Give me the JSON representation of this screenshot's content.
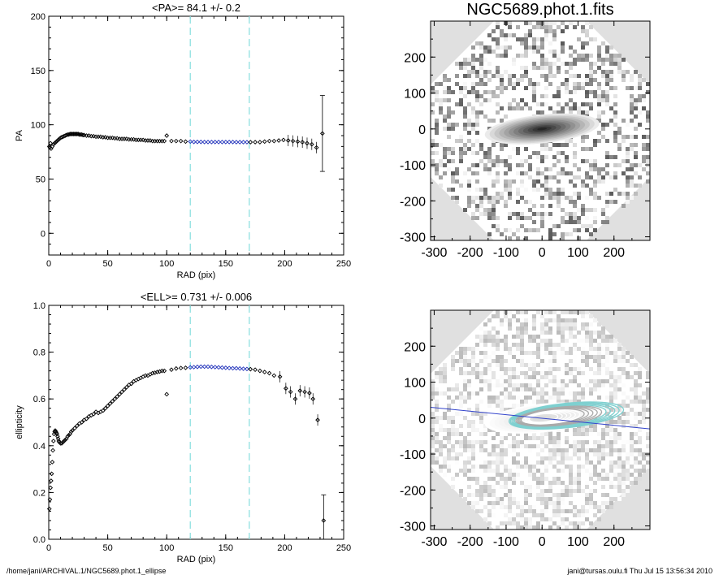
{
  "chart_data": [
    {
      "type": "scatter",
      "title": "<PA>=  84.1 +/-   0.2",
      "xlabel": "RAD (pix)",
      "ylabel": "PA",
      "xlim": [
        0,
        250
      ],
      "ylim": [
        -20,
        200
      ],
      "xticks": [
        "0",
        "50",
        "100",
        "150",
        "200",
        "250"
      ],
      "yticks": [
        "0",
        "50",
        "100",
        "150",
        "200"
      ],
      "xtick_values": [
        0,
        50,
        100,
        150,
        200,
        250
      ],
      "ytick_values": [
        0,
        50,
        100,
        150,
        200
      ],
      "vlines": [
        120,
        170
      ],
      "vline_color": "#8fe0e0",
      "highlight_color": "#2233bb",
      "highlight_range": [
        120,
        170
      ],
      "x": [
        0.5,
        1,
        1.5,
        2,
        3,
        4,
        5,
        6,
        7,
        8,
        9,
        10,
        11,
        12,
        13,
        14,
        15,
        16,
        17,
        18,
        19,
        20,
        21,
        22,
        23,
        24,
        25,
        26,
        27,
        28,
        29,
        30,
        32,
        34,
        36,
        38,
        40,
        42,
        44,
        46,
        48,
        50,
        52,
        54,
        56,
        58,
        60,
        62,
        64,
        66,
        68,
        70,
        72,
        74,
        76,
        78,
        80,
        82,
        84,
        86,
        88,
        90,
        92,
        94,
        96,
        98,
        100,
        104,
        108,
        112,
        116,
        120,
        123,
        126,
        129,
        132,
        135,
        138,
        141,
        144,
        147,
        150,
        153,
        156,
        159,
        162,
        165,
        168,
        171,
        175,
        179,
        183,
        187,
        191,
        195,
        199,
        203,
        207,
        211,
        215,
        219,
        223,
        227,
        232
      ],
      "y": [
        80,
        79,
        83,
        78,
        80,
        82,
        83,
        84,
        85,
        86,
        87,
        88,
        88.5,
        89,
        89.5,
        90,
        90.5,
        91,
        91,
        91.5,
        91.5,
        91.5,
        91.5,
        91.5,
        91.5,
        91.5,
        91.5,
        91,
        91,
        91,
        90.5,
        90.5,
        90,
        90,
        89.5,
        89.5,
        89,
        89,
        89,
        88.5,
        88.5,
        88,
        88,
        88,
        87.5,
        87.5,
        87,
        87,
        87,
        87,
        86.5,
        86.5,
        86.5,
        86,
        86,
        86,
        86,
        85.5,
        85.5,
        85.5,
        85,
        85,
        85,
        85,
        85,
        85,
        90,
        85,
        85,
        85,
        84.5,
        84.5,
        84.2,
        84.2,
        84.2,
        84.1,
        84.1,
        84.1,
        84.1,
        84.1,
        84.1,
        84.1,
        84.1,
        84.1,
        84,
        84,
        84,
        84,
        84,
        84,
        84,
        84.5,
        85,
        85,
        85.5,
        86,
        85.5,
        85,
        84.5,
        84,
        83,
        82,
        79,
        92
      ],
      "err_index": 103,
      "err_low": 57,
      "err_high": 127
    },
    {
      "type": "scatter",
      "title": "<ELL>= 0.731 +/-  0.006",
      "xlabel": "RAD (pix)",
      "ylabel": "ellipticity",
      "xlim": [
        0,
        250
      ],
      "ylim": [
        0,
        1
      ],
      "xticks": [
        "0",
        "50",
        "100",
        "150",
        "200",
        "250"
      ],
      "yticks": [
        "0.0",
        "0.2",
        "0.4",
        "0.6",
        "0.8",
        "1.0"
      ],
      "xtick_values": [
        0,
        50,
        100,
        150,
        200,
        250
      ],
      "ytick_values": [
        0,
        0.2,
        0.4,
        0.6,
        0.8,
        1.0
      ],
      "vlines": [
        120,
        170
      ],
      "vline_color": "#8fe0e0",
      "highlight_color": "#2233bb",
      "highlight_range": [
        120,
        170
      ],
      "x": [
        0.5,
        1,
        1.5,
        2,
        2.5,
        3,
        3.5,
        4,
        4.5,
        5,
        5.5,
        6,
        6.5,
        7,
        7.5,
        8,
        8.5,
        9,
        10,
        11,
        12,
        13,
        14,
        15,
        16,
        17,
        18,
        19,
        20,
        22,
        24,
        26,
        28,
        30,
        32,
        34,
        36,
        38,
        40,
        42,
        44,
        46,
        48,
        50,
        52,
        54,
        56,
        58,
        60,
        62,
        64,
        66,
        68,
        70,
        72,
        74,
        76,
        78,
        80,
        82,
        84,
        86,
        88,
        90,
        92,
        94,
        96,
        98,
        100,
        104,
        108,
        112,
        116,
        120,
        123,
        126,
        129,
        132,
        135,
        138,
        141,
        144,
        147,
        150,
        153,
        156,
        159,
        162,
        165,
        168,
        171,
        175,
        179,
        183,
        187,
        191,
        196,
        201,
        205,
        209,
        213,
        217,
        221,
        224,
        228,
        233
      ],
      "y": [
        0.13,
        0.17,
        0.22,
        0.25,
        0.28,
        0.33,
        0.38,
        0.42,
        0.45,
        0.46,
        0.465,
        0.46,
        0.455,
        0.45,
        0.44,
        0.43,
        0.42,
        0.415,
        0.41,
        0.41,
        0.415,
        0.42,
        0.425,
        0.43,
        0.44,
        0.445,
        0.45,
        0.46,
        0.465,
        0.475,
        0.485,
        0.495,
        0.5,
        0.51,
        0.515,
        0.525,
        0.53,
        0.535,
        0.545,
        0.54,
        0.545,
        0.55,
        0.56,
        0.57,
        0.58,
        0.59,
        0.6,
        0.61,
        0.62,
        0.63,
        0.64,
        0.65,
        0.66,
        0.665,
        0.675,
        0.68,
        0.685,
        0.69,
        0.695,
        0.7,
        0.7,
        0.705,
        0.71,
        0.712,
        0.715,
        0.717,
        0.72,
        0.72,
        0.62,
        0.725,
        0.73,
        0.732,
        0.733,
        0.735,
        0.736,
        0.737,
        0.738,
        0.738,
        0.738,
        0.737,
        0.736,
        0.735,
        0.734,
        0.733,
        0.732,
        0.731,
        0.731,
        0.73,
        0.729,
        0.728,
        0.727,
        0.725,
        0.72,
        0.715,
        0.71,
        0.7,
        0.695,
        0.645,
        0.63,
        0.6,
        0.635,
        0.63,
        0.625,
        0.6,
        0.51,
        0.08
      ],
      "err_index": 105,
      "err_low": 0.0,
      "err_high": 0.19
    }
  ],
  "images": {
    "title": "NGC5689.phot.1.fits",
    "xticks": [
      "-300",
      "-200",
      "-100",
      "0",
      "100",
      "200"
    ],
    "yticks": [
      "-300",
      "-200",
      "-100",
      "0",
      "100",
      "200"
    ],
    "xtick_values": [
      -300,
      -200,
      -100,
      0,
      100,
      200
    ],
    "ytick_values": [
      -300,
      -200,
      -100,
      0,
      100,
      200
    ],
    "range": [
      -310,
      300
    ],
    "pa_line_color": "#3344cc",
    "contour_color": "#7fd0d0"
  },
  "footer": {
    "left": "/home/jani/ARCHIVAL.1/NGC5689.phot.1_ellipse",
    "right": "jani@tursas.oulu.fi  Thu Jul 15 13:56:34 2010"
  }
}
